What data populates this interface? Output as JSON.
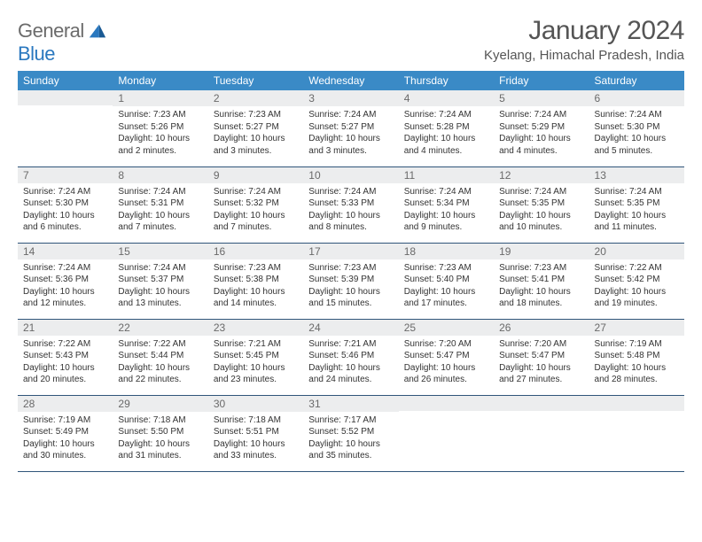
{
  "logo": {
    "general": "General",
    "blue": "Blue"
  },
  "title": "January 2024",
  "location": "Kyelang, Himachal Pradesh, India",
  "colors": {
    "header_bg": "#3a8ac6",
    "header_text": "#ffffff",
    "daynum_bg": "#ecedee",
    "daynum_text": "#6a6a6a",
    "row_border": "#30557a",
    "logo_gray": "#6b6b6b",
    "logo_blue": "#2a78bf"
  },
  "weekdays": [
    "Sunday",
    "Monday",
    "Tuesday",
    "Wednesday",
    "Thursday",
    "Friday",
    "Saturday"
  ],
  "weeks": [
    [
      null,
      {
        "n": "1",
        "sr": "Sunrise: 7:23 AM",
        "ss": "Sunset: 5:26 PM",
        "d1": "Daylight: 10 hours",
        "d2": "and 2 minutes."
      },
      {
        "n": "2",
        "sr": "Sunrise: 7:23 AM",
        "ss": "Sunset: 5:27 PM",
        "d1": "Daylight: 10 hours",
        "d2": "and 3 minutes."
      },
      {
        "n": "3",
        "sr": "Sunrise: 7:24 AM",
        "ss": "Sunset: 5:27 PM",
        "d1": "Daylight: 10 hours",
        "d2": "and 3 minutes."
      },
      {
        "n": "4",
        "sr": "Sunrise: 7:24 AM",
        "ss": "Sunset: 5:28 PM",
        "d1": "Daylight: 10 hours",
        "d2": "and 4 minutes."
      },
      {
        "n": "5",
        "sr": "Sunrise: 7:24 AM",
        "ss": "Sunset: 5:29 PM",
        "d1": "Daylight: 10 hours",
        "d2": "and 4 minutes."
      },
      {
        "n": "6",
        "sr": "Sunrise: 7:24 AM",
        "ss": "Sunset: 5:30 PM",
        "d1": "Daylight: 10 hours",
        "d2": "and 5 minutes."
      }
    ],
    [
      {
        "n": "7",
        "sr": "Sunrise: 7:24 AM",
        "ss": "Sunset: 5:30 PM",
        "d1": "Daylight: 10 hours",
        "d2": "and 6 minutes."
      },
      {
        "n": "8",
        "sr": "Sunrise: 7:24 AM",
        "ss": "Sunset: 5:31 PM",
        "d1": "Daylight: 10 hours",
        "d2": "and 7 minutes."
      },
      {
        "n": "9",
        "sr": "Sunrise: 7:24 AM",
        "ss": "Sunset: 5:32 PM",
        "d1": "Daylight: 10 hours",
        "d2": "and 7 minutes."
      },
      {
        "n": "10",
        "sr": "Sunrise: 7:24 AM",
        "ss": "Sunset: 5:33 PM",
        "d1": "Daylight: 10 hours",
        "d2": "and 8 minutes."
      },
      {
        "n": "11",
        "sr": "Sunrise: 7:24 AM",
        "ss": "Sunset: 5:34 PM",
        "d1": "Daylight: 10 hours",
        "d2": "and 9 minutes."
      },
      {
        "n": "12",
        "sr": "Sunrise: 7:24 AM",
        "ss": "Sunset: 5:35 PM",
        "d1": "Daylight: 10 hours",
        "d2": "and 10 minutes."
      },
      {
        "n": "13",
        "sr": "Sunrise: 7:24 AM",
        "ss": "Sunset: 5:35 PM",
        "d1": "Daylight: 10 hours",
        "d2": "and 11 minutes."
      }
    ],
    [
      {
        "n": "14",
        "sr": "Sunrise: 7:24 AM",
        "ss": "Sunset: 5:36 PM",
        "d1": "Daylight: 10 hours",
        "d2": "and 12 minutes."
      },
      {
        "n": "15",
        "sr": "Sunrise: 7:24 AM",
        "ss": "Sunset: 5:37 PM",
        "d1": "Daylight: 10 hours",
        "d2": "and 13 minutes."
      },
      {
        "n": "16",
        "sr": "Sunrise: 7:23 AM",
        "ss": "Sunset: 5:38 PM",
        "d1": "Daylight: 10 hours",
        "d2": "and 14 minutes."
      },
      {
        "n": "17",
        "sr": "Sunrise: 7:23 AM",
        "ss": "Sunset: 5:39 PM",
        "d1": "Daylight: 10 hours",
        "d2": "and 15 minutes."
      },
      {
        "n": "18",
        "sr": "Sunrise: 7:23 AM",
        "ss": "Sunset: 5:40 PM",
        "d1": "Daylight: 10 hours",
        "d2": "and 17 minutes."
      },
      {
        "n": "19",
        "sr": "Sunrise: 7:23 AM",
        "ss": "Sunset: 5:41 PM",
        "d1": "Daylight: 10 hours",
        "d2": "and 18 minutes."
      },
      {
        "n": "20",
        "sr": "Sunrise: 7:22 AM",
        "ss": "Sunset: 5:42 PM",
        "d1": "Daylight: 10 hours",
        "d2": "and 19 minutes."
      }
    ],
    [
      {
        "n": "21",
        "sr": "Sunrise: 7:22 AM",
        "ss": "Sunset: 5:43 PM",
        "d1": "Daylight: 10 hours",
        "d2": "and 20 minutes."
      },
      {
        "n": "22",
        "sr": "Sunrise: 7:22 AM",
        "ss": "Sunset: 5:44 PM",
        "d1": "Daylight: 10 hours",
        "d2": "and 22 minutes."
      },
      {
        "n": "23",
        "sr": "Sunrise: 7:21 AM",
        "ss": "Sunset: 5:45 PM",
        "d1": "Daylight: 10 hours",
        "d2": "and 23 minutes."
      },
      {
        "n": "24",
        "sr": "Sunrise: 7:21 AM",
        "ss": "Sunset: 5:46 PM",
        "d1": "Daylight: 10 hours",
        "d2": "and 24 minutes."
      },
      {
        "n": "25",
        "sr": "Sunrise: 7:20 AM",
        "ss": "Sunset: 5:47 PM",
        "d1": "Daylight: 10 hours",
        "d2": "and 26 minutes."
      },
      {
        "n": "26",
        "sr": "Sunrise: 7:20 AM",
        "ss": "Sunset: 5:47 PM",
        "d1": "Daylight: 10 hours",
        "d2": "and 27 minutes."
      },
      {
        "n": "27",
        "sr": "Sunrise: 7:19 AM",
        "ss": "Sunset: 5:48 PM",
        "d1": "Daylight: 10 hours",
        "d2": "and 28 minutes."
      }
    ],
    [
      {
        "n": "28",
        "sr": "Sunrise: 7:19 AM",
        "ss": "Sunset: 5:49 PM",
        "d1": "Daylight: 10 hours",
        "d2": "and 30 minutes."
      },
      {
        "n": "29",
        "sr": "Sunrise: 7:18 AM",
        "ss": "Sunset: 5:50 PM",
        "d1": "Daylight: 10 hours",
        "d2": "and 31 minutes."
      },
      {
        "n": "30",
        "sr": "Sunrise: 7:18 AM",
        "ss": "Sunset: 5:51 PM",
        "d1": "Daylight: 10 hours",
        "d2": "and 33 minutes."
      },
      {
        "n": "31",
        "sr": "Sunrise: 7:17 AM",
        "ss": "Sunset: 5:52 PM",
        "d1": "Daylight: 10 hours",
        "d2": "and 35 minutes."
      },
      null,
      null,
      null
    ]
  ]
}
